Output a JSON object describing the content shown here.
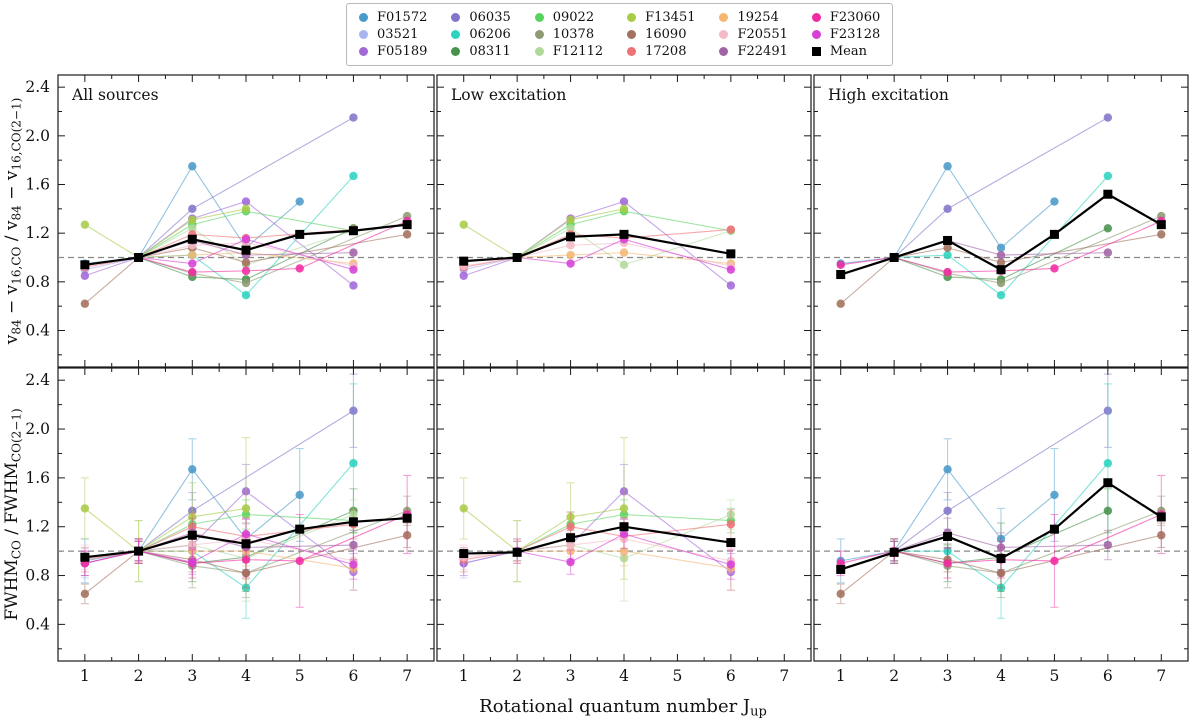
{
  "legend": {
    "entries": [
      {
        "id": "F01572",
        "label": "F01572",
        "color": "#4a9ac8",
        "marker": "circle"
      },
      {
        "id": "03521",
        "label": "03521",
        "color": "#aab5f0",
        "marker": "circle"
      },
      {
        "id": "F05189",
        "label": "F05189",
        "color": "#a169d8",
        "marker": "circle"
      },
      {
        "id": "06035",
        "label": "06035",
        "color": "#8176c9",
        "marker": "circle"
      },
      {
        "id": "06206",
        "label": "06206",
        "color": "#2cd3c0",
        "marker": "circle"
      },
      {
        "id": "08311",
        "label": "08311",
        "color": "#48934c",
        "marker": "circle"
      },
      {
        "id": "09022",
        "label": "09022",
        "color": "#58d360",
        "marker": "circle"
      },
      {
        "id": "10378",
        "label": "10378",
        "color": "#8d9b72",
        "marker": "circle"
      },
      {
        "id": "F12112",
        "label": "F12112",
        "color": "#b2d89c",
        "marker": "circle"
      },
      {
        "id": "F13451",
        "label": "F13451",
        "color": "#a9cc48",
        "marker": "circle"
      },
      {
        "id": "16090",
        "label": "16090",
        "color": "#a3715d",
        "marker": "circle"
      },
      {
        "id": "17208",
        "label": "17208",
        "color": "#ee7175",
        "marker": "circle"
      },
      {
        "id": "19254",
        "label": "19254",
        "color": "#f3b772",
        "marker": "circle"
      },
      {
        "id": "F20551",
        "label": "F20551",
        "color": "#f4bac6",
        "marker": "circle"
      },
      {
        "id": "F22491",
        "label": "F22491",
        "color": "#a263a6",
        "marker": "circle"
      },
      {
        "id": "F23060",
        "label": "F23060",
        "color": "#f12ba2",
        "marker": "circle"
      },
      {
        "id": "F23128",
        "label": "F23128",
        "color": "#d640d6",
        "marker": "circle"
      },
      {
        "id": "Mean",
        "label": "Mean",
        "color": "#000000",
        "marker": "square"
      }
    ]
  },
  "chart_data": {
    "type": "line",
    "xlabel": "Rotational quantum number J_{up}",
    "panel_titles": [
      "All sources",
      "Low excitation",
      "High excitation"
    ],
    "panel_groups": [
      "all",
      "low",
      "high"
    ],
    "x_ticks": [
      1,
      2,
      3,
      4,
      5,
      6,
      7
    ],
    "y_ticks": [
      0.4,
      0.8,
      1.2,
      1.6,
      2.0,
      2.4
    ],
    "xlim": [
      0.5,
      7.5
    ],
    "ylim": [
      0.1,
      2.5
    ],
    "reference_line_y": 1.0,
    "grid": false,
    "legend_position": "top-center",
    "groups": {
      "low": [
        "03521",
        "F05189",
        "09022",
        "F12112",
        "F13451",
        "17208",
        "19254",
        "F20551",
        "F23128"
      ],
      "high": [
        "F01572",
        "06035",
        "06206",
        "08311",
        "10378",
        "16090",
        "F22491",
        "F23060"
      ]
    },
    "rows": [
      {
        "ylabel": "v_{84} − v_{16,CO} / v_{84} − v_{16,CO(2−1)}",
        "errorbars": false,
        "series": {
          "F01572": {
            "x": [
              1,
              2,
              3,
              4,
              5
            ],
            "y": [
              0.95,
              1.0,
              1.75,
              1.08,
              1.46
            ]
          },
          "03521": {
            "x": [
              1,
              2
            ],
            "y": [
              0.9,
              1.0
            ]
          },
          "F05189": {
            "x": [
              1,
              2,
              3,
              4,
              6
            ],
            "y": [
              0.85,
              1.0,
              1.32,
              1.46,
              0.77
            ]
          },
          "06035": {
            "x": [
              2,
              3,
              6
            ],
            "y": [
              1.0,
              1.4,
              2.15
            ]
          },
          "06206": {
            "x": [
              2,
              3,
              4,
              6
            ],
            "y": [
              1.0,
              1.02,
              0.69,
              1.67
            ]
          },
          "08311": {
            "x": [
              2,
              3,
              4,
              6
            ],
            "y": [
              1.0,
              0.84,
              0.82,
              1.24
            ]
          },
          "09022": {
            "x": [
              2,
              3,
              4,
              6
            ],
            "y": [
              1.0,
              1.27,
              1.38,
              1.22
            ]
          },
          "10378": {
            "x": [
              2,
              3,
              4,
              7
            ],
            "y": [
              1.0,
              0.87,
              0.79,
              1.34
            ]
          },
          "F12112": {
            "x": [
              2,
              3,
              4,
              6
            ],
            "y": [
              1.0,
              1.24,
              0.94,
              1.22
            ]
          },
          "F13451": {
            "x": [
              1,
              2,
              3,
              4
            ],
            "y": [
              1.27,
              1.0,
              1.31,
              1.4
            ]
          },
          "16090": {
            "x": [
              1,
              2,
              3,
              4,
              7
            ],
            "y": [
              0.62,
              1.0,
              1.08,
              0.96,
              1.19
            ]
          },
          "17208": {
            "x": [
              1,
              2,
              3,
              4,
              6
            ],
            "y": [
              0.92,
              1.0,
              1.19,
              1.16,
              1.23
            ]
          },
          "19254": {
            "x": [
              2,
              3,
              4,
              6
            ],
            "y": [
              1.0,
              1.02,
              1.04,
              0.95
            ]
          },
          "F20551": {
            "x": [
              1,
              2,
              3,
              4,
              6
            ],
            "y": [
              0.93,
              1.0,
              1.1,
              1.12,
              0.93
            ]
          },
          "F22491": {
            "x": [
              2,
              3,
              4,
              6
            ],
            "y": [
              1.0,
              1.14,
              1.02,
              1.04
            ]
          },
          "F23060": {
            "x": [
              1,
              2,
              3,
              4,
              5,
              7
            ],
            "y": [
              0.94,
              1.0,
              0.88,
              0.89,
              0.91,
              1.3
            ]
          },
          "F23128": {
            "x": [
              2,
              3,
              4,
              6
            ],
            "y": [
              1.0,
              0.95,
              1.15,
              0.9
            ]
          }
        },
        "mean": {
          "all": {
            "x": [
              1,
              2,
              3,
              4,
              5,
              6,
              7
            ],
            "y": [
              0.94,
              1.0,
              1.15,
              1.06,
              1.19,
              1.22,
              1.27
            ]
          },
          "low": {
            "x": [
              1,
              2,
              3,
              4,
              6
            ],
            "y": [
              0.97,
              1.0,
              1.17,
              1.19,
              1.03
            ]
          },
          "high": {
            "x": [
              1,
              2,
              3,
              4,
              5,
              6,
              7
            ],
            "y": [
              0.86,
              1.0,
              1.14,
              0.9,
              1.19,
              1.52,
              1.27
            ]
          }
        }
      },
      {
        "ylabel": "FWHM_{CO} / FWHM_{CO(2−1)}",
        "errorbars": true,
        "series": {
          "F01572": {
            "x": [
              1,
              2,
              3,
              4,
              5
            ],
            "y": [
              0.92,
              1.0,
              1.67,
              1.1,
              1.46
            ],
            "err": [
              0.18,
              0.08,
              0.25,
              0.25,
              0.38
            ]
          },
          "03521": {
            "x": [
              1,
              2
            ],
            "y": [
              0.9,
              1.0
            ],
            "err": [
              0.12,
              0.08
            ]
          },
          "F05189": {
            "x": [
              1,
              2,
              3,
              4,
              6
            ],
            "y": [
              0.9,
              1.0,
              1.05,
              1.49,
              0.83
            ],
            "err": [
              0.1,
              0.08,
              0.12,
              0.22,
              0.15
            ]
          },
          "06035": {
            "x": [
              2,
              3,
              6
            ],
            "y": [
              1.0,
              1.33,
              2.15
            ],
            "err": [
              0.08,
              0.15,
              0.3
            ]
          },
          "06206": {
            "x": [
              2,
              3,
              4,
              6
            ],
            "y": [
              1.0,
              1.0,
              0.7,
              1.72
            ],
            "err": [
              0.1,
              0.12,
              0.25,
              0.65
            ]
          },
          "08311": {
            "x": [
              2,
              3,
              4,
              6
            ],
            "y": [
              1.0,
              0.9,
              0.95,
              1.33
            ],
            "err": [
              0.1,
              0.15,
              0.28,
              0.18
            ]
          },
          "09022": {
            "x": [
              2,
              3,
              4,
              6
            ],
            "y": [
              1.0,
              1.22,
              1.3,
              1.25
            ],
            "err": [
              0.08,
              0.1,
              0.12,
              0.1
            ]
          },
          "10378": {
            "x": [
              2,
              3,
              4,
              7
            ],
            "y": [
              1.0,
              0.88,
              0.82,
              1.33
            ],
            "err": [
              0.1,
              0.18,
              0.2,
              0.12
            ]
          },
          "F12112": {
            "x": [
              2,
              3,
              4,
              6
            ],
            "y": [
              1.0,
              1.05,
              0.94,
              1.3
            ],
            "err": [
              0.25,
              0.15,
              0.35,
              0.12
            ]
          },
          "F13451": {
            "x": [
              1,
              2,
              3,
              4
            ],
            "y": [
              1.35,
              1.0,
              1.28,
              1.35
            ],
            "err": [
              0.25,
              0.25,
              0.28,
              0.58
            ]
          },
          "16090": {
            "x": [
              1,
              2,
              3,
              4,
              7
            ],
            "y": [
              0.65,
              1.0,
              0.93,
              0.82,
              1.13
            ],
            "err": [
              0.08,
              0.08,
              0.1,
              0.12,
              0.1
            ]
          },
          "17208": {
            "x": [
              1,
              2,
              3,
              4,
              6
            ],
            "y": [
              0.93,
              1.0,
              1.2,
              1.12,
              1.22
            ],
            "err": [
              0.1,
              0.08,
              0.12,
              0.15,
              0.12
            ]
          },
          "19254": {
            "x": [
              2,
              3,
              4,
              6
            ],
            "y": [
              1.0,
              1.0,
              1.0,
              0.86
            ],
            "err": [
              0.1,
              0.1,
              0.12,
              0.18
            ]
          },
          "F20551": {
            "x": [
              1,
              2,
              3,
              4,
              6
            ],
            "y": [
              0.95,
              1.0,
              1.05,
              1.1,
              0.92
            ],
            "err": [
              0.1,
              0.08,
              0.1,
              0.12,
              0.1
            ]
          },
          "F22491": {
            "x": [
              2,
              3,
              4,
              6
            ],
            "y": [
              1.0,
              1.15,
              1.03,
              1.05
            ],
            "err": [
              0.08,
              0.12,
              0.12,
              0.12
            ]
          },
          "F23060": {
            "x": [
              1,
              2,
              3,
              4,
              5,
              7
            ],
            "y": [
              0.9,
              1.0,
              0.9,
              0.93,
              0.92,
              1.3
            ],
            "err": [
              0.1,
              0.1,
              0.12,
              0.15,
              0.38,
              0.32
            ]
          },
          "F23128": {
            "x": [
              2,
              3,
              4,
              6
            ],
            "y": [
              1.0,
              0.91,
              1.14,
              0.89
            ],
            "err": [
              0.1,
              0.1,
              0.12,
              0.12
            ]
          }
        },
        "mean": {
          "all": {
            "x": [
              1,
              2,
              3,
              4,
              5,
              6,
              7
            ],
            "y": [
              0.95,
              1.0,
              1.13,
              1.06,
              1.18,
              1.24,
              1.27
            ]
          },
          "low": {
            "x": [
              1,
              2,
              3,
              4,
              6
            ],
            "y": [
              0.98,
              0.99,
              1.11,
              1.2,
              1.07
            ]
          },
          "high": {
            "x": [
              1,
              2,
              3,
              4,
              5,
              6,
              7
            ],
            "y": [
              0.85,
              0.99,
              1.12,
              0.94,
              1.18,
              1.56,
              1.28
            ]
          }
        }
      }
    ]
  }
}
